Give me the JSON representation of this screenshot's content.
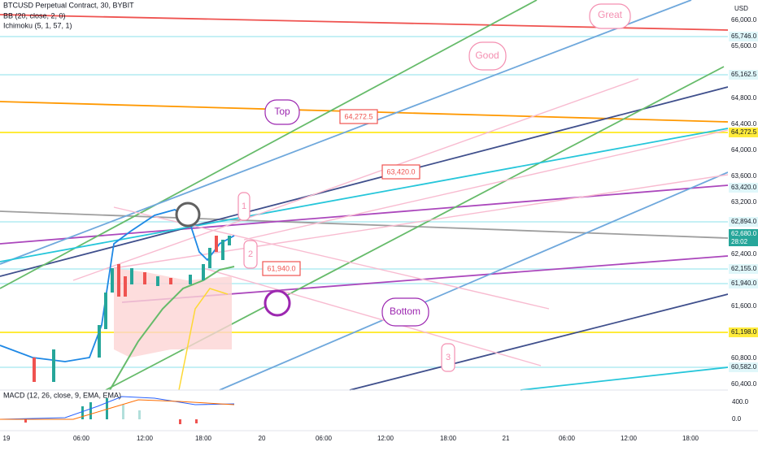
{
  "header": {
    "symbol": "BTCUSD Perpetual Contract, 30, BYBIT",
    "indicators": [
      "BB (20, close, 2, 0)",
      "Ichimoku (5, 1, 57, 1)"
    ],
    "currency": "USD"
  },
  "price_axis": {
    "labels": [
      "66,000.0",
      "65,746.0",
      "65,600.0",
      "65,162.5",
      "64,800.0",
      "64,400.0",
      "64,272.5",
      "64,000.0",
      "63,600.0",
      "63,420.0",
      "63,200.0",
      "62,894.0",
      "62,680.0",
      "62,400.0",
      "62,155.0",
      "61,940.0",
      "61,600.0",
      "61,198.0",
      "60,800.0",
      "60,582.0",
      "60,400.0"
    ],
    "countdown": "28:02"
  },
  "macd": {
    "title": "MACD (12, 26, close, 9, EMA, EMA)",
    "axis": [
      "400.0",
      "0.0"
    ]
  },
  "time_axis": [
    "19",
    "06:00",
    "12:00",
    "18:00",
    "20",
    "06:00",
    "12:00",
    "18:00",
    "21",
    "06:00",
    "12:00",
    "18:00"
  ],
  "annotations": {
    "great": "Great",
    "good": "Good",
    "top": "Top",
    "top_price": "64,272.5",
    "mid_price": "63,420.0",
    "one": "1",
    "two": "2",
    "low_price": "61,940.0",
    "bottom": "Bottom",
    "three": "3"
  }
}
